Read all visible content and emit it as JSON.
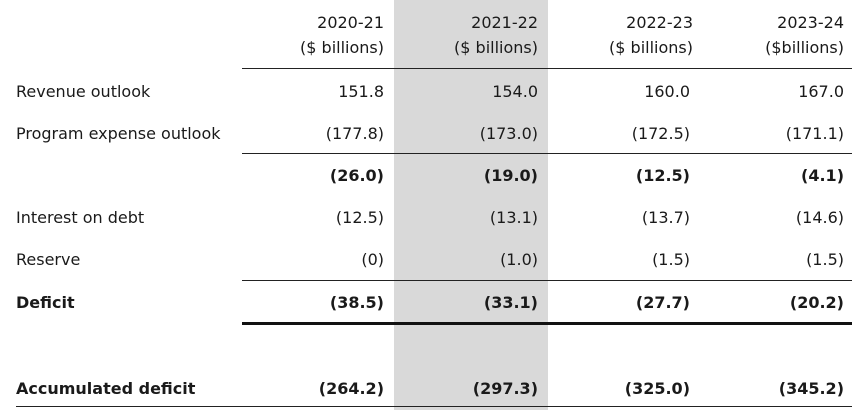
{
  "columns": [
    {
      "year": "2020-21",
      "unit": "($ billions)"
    },
    {
      "year": "2021-22",
      "unit": "($ billions)"
    },
    {
      "year": "2022-23",
      "unit": "($ billions)"
    },
    {
      "year": "2023-24",
      "unit": "($billions)"
    }
  ],
  "rows": [
    {
      "label": "Revenue outlook",
      "values": [
        "151.8",
        "154.0",
        "160.0",
        "167.0"
      ]
    },
    {
      "label": "Program expense outlook",
      "values": [
        "(177.8)",
        "(173.0)",
        "(172.5)",
        "(171.1)"
      ]
    },
    {
      "label": "",
      "values": [
        "(26.0)",
        "(19.0)",
        "(12.5)",
        "(4.1)"
      ]
    },
    {
      "label": "Interest on debt",
      "values": [
        "(12.5)",
        "(13.1)",
        "(13.7)",
        "(14.6)"
      ]
    },
    {
      "label": "Reserve",
      "values": [
        "(0)",
        "(1.0)",
        "(1.5)",
        "(1.5)"
      ]
    },
    {
      "label": "Deficit",
      "values": [
        "(38.5)",
        "(33.1)",
        "(27.7)",
        "(20.2)"
      ]
    },
    {
      "label": "Accumulated deficit",
      "values": [
        "(264.2)",
        "(297.3)",
        "(325.0)",
        "(345.2)"
      ]
    }
  ]
}
